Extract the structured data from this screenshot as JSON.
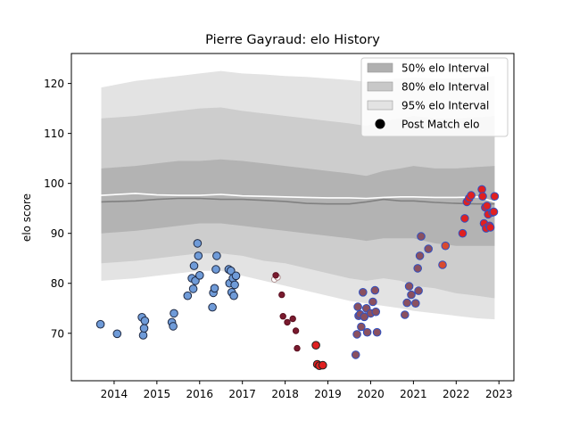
{
  "chart_data": {
    "type": "scatter",
    "title": "Pierre Gayraud: elo History",
    "xlabel": "",
    "ylabel": "elo score",
    "xlim": [
      2013.0,
      2023.35
    ],
    "ylim": [
      60.5,
      126.0
    ],
    "x_ticks": [
      2014,
      2015,
      2016,
      2017,
      2018,
      2019,
      2020,
      2021,
      2022,
      2023
    ],
    "y_ticks": [
      70,
      80,
      90,
      100,
      110,
      120
    ],
    "grid": false,
    "legend_position": "top-right",
    "legend": [
      {
        "label": "50% elo Interval",
        "kind": "patch",
        "color": "#b0b0b0"
      },
      {
        "label": "80% elo Interval",
        "kind": "patch",
        "color": "#c8c8c8"
      },
      {
        "label": "95% elo Interval",
        "kind": "patch",
        "color": "#e3e3e3"
      },
      {
        "label": "Post Match elo",
        "kind": "marker",
        "color": "#000000"
      }
    ],
    "bands": {
      "x": [
        2013.7,
        2014.5,
        2015.0,
        2015.5,
        2016.0,
        2016.5,
        2017.0,
        2017.5,
        2018.0,
        2018.5,
        2019.0,
        2019.5,
        2019.9,
        2020.3,
        2020.7,
        2021.0,
        2021.5,
        2022.0,
        2022.5,
        2022.9
      ],
      "p95_hi": [
        119.2,
        120.5,
        121.0,
        121.5,
        122.0,
        122.5,
        122.0,
        121.8,
        121.5,
        121.3,
        121.0,
        120.7,
        120.3,
        120.8,
        121.0,
        121.2,
        121.0,
        121.0,
        121.2,
        121.5
      ],
      "p80_hi": [
        113.0,
        113.5,
        114.0,
        114.5,
        115.0,
        115.2,
        114.5,
        114.0,
        113.5,
        113.0,
        112.5,
        112.0,
        111.5,
        112.5,
        113.0,
        113.5,
        113.0,
        113.0,
        113.2,
        113.5
      ],
      "p50_hi": [
        103.0,
        103.5,
        104.0,
        104.5,
        104.5,
        104.8,
        104.5,
        104.0,
        103.5,
        103.0,
        102.5,
        102.0,
        101.5,
        102.5,
        103.0,
        103.5,
        103.0,
        103.0,
        103.3,
        103.5
      ],
      "p50_lo": [
        90.0,
        90.5,
        91.0,
        91.5,
        92.0,
        92.0,
        91.5,
        91.0,
        90.5,
        90.0,
        89.5,
        89.0,
        88.5,
        89.0,
        89.0,
        89.0,
        88.0,
        87.5,
        87.5,
        87.5
      ],
      "p80_lo": [
        84.0,
        84.5,
        85.0,
        85.5,
        86.0,
        86.0,
        85.5,
        84.5,
        84.0,
        83.0,
        82.0,
        81.0,
        80.5,
        81.0,
        80.5,
        79.5,
        79.0,
        78.0,
        77.5,
        77.0
      ],
      "p95_lo": [
        80.5,
        81.0,
        81.5,
        82.0,
        82.5,
        82.5,
        81.5,
        80.5,
        79.5,
        78.5,
        77.5,
        76.5,
        76.0,
        75.5,
        75.0,
        74.5,
        74.0,
        73.5,
        73.0,
        72.8
      ],
      "median": [
        96.3,
        96.5,
        96.8,
        97.0,
        97.0,
        96.8,
        96.8,
        96.6,
        96.4,
        96.0,
        95.9,
        95.9,
        96.3,
        96.8,
        96.5,
        96.5,
        96.2,
        96.0,
        95.9,
        95.9
      ],
      "mean": [
        97.6,
        98.0,
        97.7,
        97.6,
        97.6,
        97.8,
        97.5,
        97.4,
        97.3,
        97.2,
        97.1,
        97.1,
        97.0,
        97.2,
        97.3,
        97.3,
        97.2,
        97.2,
        97.3,
        96.3
      ]
    },
    "series": [
      {
        "marker": "#6f9bd8",
        "edge": "#1f2a44",
        "size": 4.3,
        "x": [
          2013.68,
          2014.07,
          2014.65,
          2014.68,
          2014.7,
          2014.72,
          2015.35,
          2015.38,
          2015.4,
          2015.72,
          2015.82,
          2015.85,
          2015.87,
          2015.9,
          2015.95,
          2015.97,
          2016.0,
          2016.3,
          2016.32,
          2016.35,
          2016.38,
          2016.4,
          2016.68,
          2016.7,
          2016.73,
          2016.75,
          2016.78,
          2016.8,
          2016.82,
          2016.85
        ],
        "y": [
          71.8,
          69.9,
          73.2,
          69.6,
          71.0,
          72.5,
          72.2,
          71.4,
          74.0,
          77.5,
          81.0,
          78.9,
          83.5,
          80.5,
          88.0,
          85.5,
          81.6,
          75.2,
          78.1,
          79.0,
          82.8,
          85.5,
          82.8,
          80.0,
          82.5,
          78.2,
          81.0,
          77.5,
          79.7,
          81.5
        ]
      },
      {
        "marker": "#ffffff",
        "edge": "#b09090",
        "size": 3.2,
        "x": [
          2017.75,
          2017.82
        ],
        "y": [
          80.8,
          81.2
        ]
      },
      {
        "marker": "#7a1a2e",
        "edge": "#5a1020",
        "size": 3.2,
        "x": [
          2017.78,
          2017.92,
          2017.95,
          2018.05,
          2018.18,
          2018.25,
          2018.28
        ],
        "y": [
          81.6,
          77.7,
          73.4,
          72.2,
          72.9,
          70.5,
          67.0
        ]
      },
      {
        "marker": "#e02020",
        "edge": "#202020",
        "size": 4.3,
        "x": [
          2018.72,
          2018.75,
          2018.8,
          2018.88
        ],
        "y": [
          67.6,
          63.8,
          63.5,
          63.6
        ]
      },
      {
        "marker": "#8a5060",
        "edge": "#3050c0",
        "size": 4.3,
        "x": [
          2019.65,
          2019.68,
          2019.7,
          2019.72,
          2019.75,
          2019.78,
          2019.82,
          2019.85,
          2019.9,
          2019.92,
          2020.0,
          2020.05,
          2020.1,
          2020.12,
          2020.15,
          2020.8,
          2020.85,
          2020.9,
          2020.95,
          2021.05,
          2021.1,
          2021.12,
          2021.15,
          2021.18,
          2021.35
        ],
        "y": [
          65.7,
          69.8,
          75.3,
          73.5,
          73.8,
          71.3,
          78.2,
          73.3,
          75.0,
          70.2,
          74.0,
          76.3,
          78.6,
          74.3,
          70.2,
          73.7,
          76.1,
          79.4,
          77.7,
          76.0,
          83.0,
          78.5,
          85.5,
          89.4,
          86.9
        ]
      },
      {
        "marker": "#d84a30",
        "edge": "#3050c0",
        "size": 4.3,
        "x": [
          2021.68,
          2021.75
        ],
        "y": [
          83.7,
          87.5
        ]
      },
      {
        "marker": "#e02020",
        "edge": "#3050c0",
        "size": 4.3,
        "x": [
          2022.15,
          2022.2,
          2022.25,
          2022.3,
          2022.35,
          2022.6,
          2022.62,
          2022.65,
          2022.68,
          2022.7,
          2022.72,
          2022.75,
          2022.78,
          2022.8,
          2022.85,
          2022.88,
          2022.9
        ],
        "y": [
          90.0,
          93.0,
          96.3,
          97.0,
          97.6,
          98.8,
          97.4,
          92.0,
          95.2,
          91.0,
          95.5,
          93.8,
          91.5,
          91.2,
          94.2,
          94.3,
          97.4
        ]
      }
    ]
  }
}
